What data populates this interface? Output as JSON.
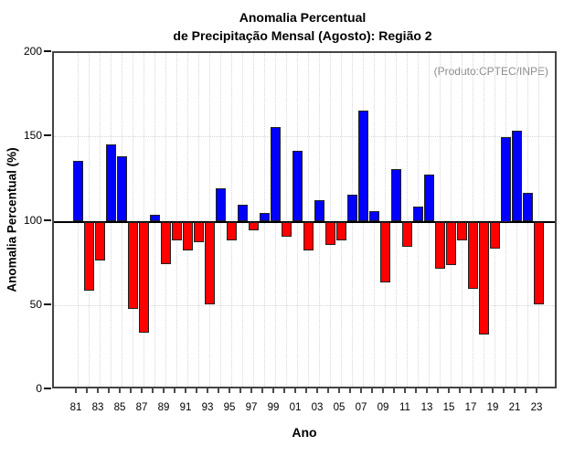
{
  "title": {
    "line1": "Anomalia Percentual",
    "line2": "de Precipitação Mensal (Agosto): Região 2"
  },
  "annotation": "(Produto:CPTEC/INPE)",
  "chart_data": {
    "type": "bar",
    "title": "Anomalia Percentual de Precipitação Mensal (Agosto): Região 2",
    "xlabel": "Ano",
    "ylabel": "Anomalia Percentual (%)",
    "ylim": [
      0,
      200
    ],
    "yticks": [
      0,
      50,
      100,
      150,
      200
    ],
    "baseline": 100,
    "grid": true,
    "legend": false,
    "x_tick_labels": [
      "81",
      "83",
      "85",
      "87",
      "89",
      "91",
      "93",
      "95",
      "97",
      "99",
      "01",
      "03",
      "05",
      "07",
      "09",
      "11",
      "13",
      "15",
      "17",
      "19",
      "21",
      "23"
    ],
    "years": [
      1981,
      1982,
      1983,
      1984,
      1985,
      1986,
      1987,
      1988,
      1989,
      1990,
      1991,
      1992,
      1993,
      1994,
      1995,
      1996,
      1997,
      1998,
      1999,
      2000,
      2001,
      2002,
      2003,
      2004,
      2005,
      2006,
      2007,
      2008,
      2009,
      2010,
      2011,
      2012,
      2013,
      2014,
      2015,
      2016,
      2017,
      2018,
      2019,
      2020,
      2021,
      2022,
      2023
    ],
    "values": [
      136,
      59,
      77,
      146,
      139,
      48,
      34,
      104,
      75,
      89,
      83,
      88,
      51,
      120,
      89,
      110,
      95,
      105,
      156,
      91,
      142,
      83,
      113,
      86,
      89,
      116,
      166,
      106,
      64,
      131,
      85,
      109,
      128,
      72,
      74,
      89,
      60,
      33,
      84,
      150,
      154,
      117,
      51
    ],
    "colors": {
      "above_baseline": "#0000FF",
      "below_baseline": "#FF0000",
      "bar_border": "#222222",
      "baseline_line": "#000000",
      "grid": "#D6D6D6",
      "frame": "#454545",
      "annotation_text": "#8C8C8C"
    }
  }
}
